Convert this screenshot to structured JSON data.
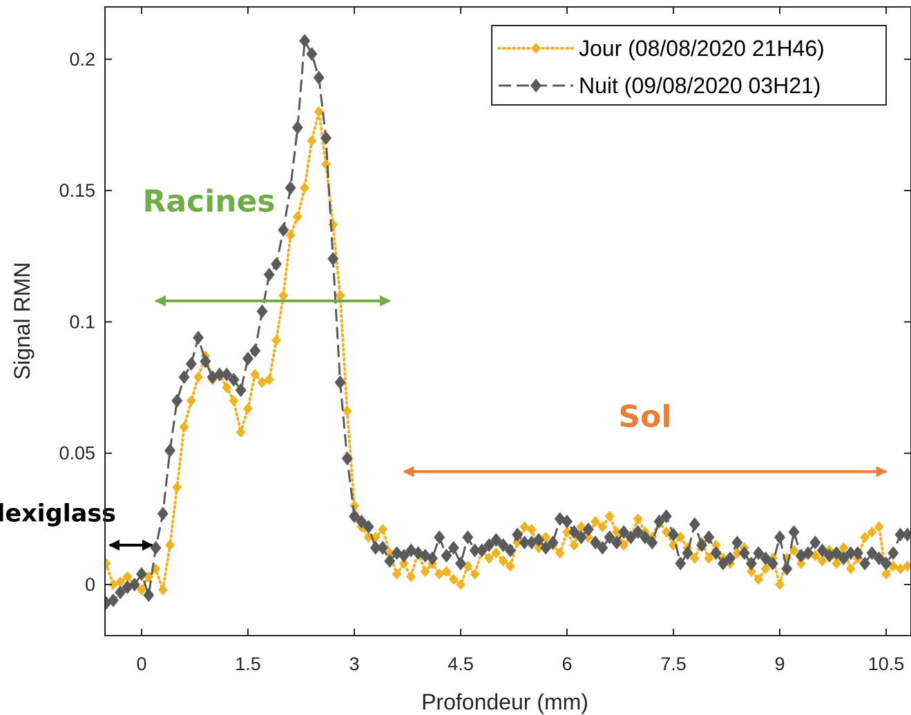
{
  "chart_data": {
    "type": "line",
    "title": "",
    "xlabel": "Profondeur (mm)",
    "ylabel": "Signal RMN",
    "xlim": [
      -0.5,
      10.9
    ],
    "ylim": [
      -0.02,
      0.22
    ],
    "xticks": [
      0,
      1.5,
      3,
      4.5,
      6,
      7.5,
      9,
      10.5
    ],
    "xtick_labels": [
      "0",
      "1.5",
      "3",
      "4.5",
      "6",
      "7.5",
      "9",
      "10.5"
    ],
    "yticks": [
      0,
      0.05,
      0.1,
      0.15,
      0.2
    ],
    "ytick_labels": [
      "0",
      "0.05",
      "0.1",
      "0.15",
      "0.2"
    ],
    "grid": false,
    "legend_position": "top-right",
    "series": [
      {
        "name": "Jour (08/08/2020 21H46)",
        "color": "#f0b323",
        "line_style": "dotted",
        "marker": "diamond",
        "x": [
          -0.5,
          -0.4,
          -0.3,
          -0.2,
          -0.1,
          0.0,
          0.1,
          0.2,
          0.3,
          0.4,
          0.5,
          0.6,
          0.7,
          0.8,
          0.9,
          1.0,
          1.1,
          1.2,
          1.3,
          1.4,
          1.5,
          1.6,
          1.7,
          1.8,
          1.9,
          2.0,
          2.1,
          2.2,
          2.3,
          2.4,
          2.5,
          2.6,
          2.7,
          2.8,
          2.9,
          3.0,
          3.1,
          3.2,
          3.3,
          3.4,
          3.5,
          3.6,
          3.7,
          3.8,
          3.9,
          4.0,
          4.1,
          4.2,
          4.3,
          4.4,
          4.5,
          4.6,
          4.7,
          4.8,
          4.9,
          5.0,
          5.1,
          5.2,
          5.3,
          5.4,
          5.5,
          5.6,
          5.7,
          5.8,
          5.9,
          6.0,
          6.1,
          6.2,
          6.3,
          6.4,
          6.5,
          6.6,
          6.7,
          6.8,
          6.9,
          7.0,
          7.1,
          7.2,
          7.3,
          7.4,
          7.5,
          7.6,
          7.7,
          7.8,
          7.9,
          8.0,
          8.1,
          8.2,
          8.3,
          8.4,
          8.5,
          8.6,
          8.7,
          8.8,
          8.9,
          9.0,
          9.1,
          9.2,
          9.3,
          9.4,
          9.5,
          9.6,
          9.7,
          9.8,
          9.9,
          10.0,
          10.1,
          10.2,
          10.3,
          10.4,
          10.5,
          10.6,
          10.7,
          10.8
        ],
        "y": [
          0.008,
          0.0,
          0.001,
          0.003,
          0.0,
          -0.002,
          0.003,
          0.006,
          -0.002,
          0.015,
          0.037,
          0.06,
          0.07,
          0.079,
          0.087,
          0.078,
          0.08,
          0.075,
          0.07,
          0.058,
          0.067,
          0.08,
          0.077,
          0.078,
          0.093,
          0.11,
          0.133,
          0.14,
          0.151,
          0.169,
          0.18,
          0.16,
          0.137,
          0.11,
          0.066,
          0.03,
          0.022,
          0.018,
          0.018,
          0.021,
          0.012,
          0.004,
          0.008,
          0.003,
          0.012,
          0.005,
          0.008,
          0.004,
          0.005,
          0.002,
          0.0,
          0.007,
          0.004,
          0.013,
          0.01,
          0.012,
          0.009,
          0.007,
          0.016,
          0.022,
          0.021,
          0.014,
          0.018,
          0.015,
          0.012,
          0.02,
          0.015,
          0.022,
          0.018,
          0.024,
          0.022,
          0.026,
          0.02,
          0.015,
          0.018,
          0.025,
          0.02,
          0.018,
          0.024,
          0.02,
          0.015,
          0.018,
          0.014,
          0.01,
          0.016,
          0.01,
          0.015,
          0.01,
          0.008,
          0.012,
          0.014,
          0.005,
          0.002,
          0.006,
          0.01,
          0.0,
          0.01,
          0.013,
          0.008,
          0.012,
          0.011,
          0.009,
          0.013,
          0.008,
          0.014,
          0.006,
          0.01,
          0.018,
          0.02,
          0.022,
          0.004,
          0.007,
          0.006,
          0.007
        ]
      },
      {
        "name": "Nuit (09/08/2020 03H21)",
        "color": "#5a5a5a",
        "line_style": "dashed",
        "marker": "diamond",
        "x": [
          -0.5,
          -0.4,
          -0.3,
          -0.2,
          -0.1,
          0.0,
          0.1,
          0.2,
          0.3,
          0.4,
          0.5,
          0.6,
          0.7,
          0.8,
          0.9,
          1.0,
          1.1,
          1.2,
          1.3,
          1.4,
          1.5,
          1.6,
          1.7,
          1.8,
          1.9,
          2.0,
          2.1,
          2.2,
          2.3,
          2.4,
          2.5,
          2.6,
          2.7,
          2.8,
          2.9,
          3.0,
          3.1,
          3.2,
          3.3,
          3.4,
          3.5,
          3.6,
          3.7,
          3.8,
          3.9,
          4.0,
          4.1,
          4.2,
          4.3,
          4.4,
          4.5,
          4.6,
          4.7,
          4.8,
          4.9,
          5.0,
          5.1,
          5.2,
          5.3,
          5.4,
          5.5,
          5.6,
          5.7,
          5.8,
          5.9,
          6.0,
          6.1,
          6.2,
          6.3,
          6.4,
          6.5,
          6.6,
          6.7,
          6.8,
          6.9,
          7.0,
          7.1,
          7.2,
          7.3,
          7.4,
          7.5,
          7.6,
          7.7,
          7.8,
          7.9,
          8.0,
          8.1,
          8.2,
          8.3,
          8.4,
          8.5,
          8.6,
          8.7,
          8.8,
          8.9,
          9.0,
          9.1,
          9.2,
          9.3,
          9.4,
          9.5,
          9.6,
          9.7,
          9.8,
          9.9,
          10.0,
          10.1,
          10.2,
          10.3,
          10.4,
          10.5,
          10.6,
          10.7,
          10.8
        ],
        "y": [
          -0.007,
          -0.006,
          -0.003,
          -0.001,
          0.0,
          0.004,
          -0.004,
          0.014,
          0.027,
          0.051,
          0.07,
          0.079,
          0.084,
          0.094,
          0.085,
          0.079,
          0.08,
          0.08,
          0.078,
          0.074,
          0.086,
          0.089,
          0.104,
          0.118,
          0.122,
          0.135,
          0.151,
          0.174,
          0.207,
          0.202,
          0.193,
          0.17,
          0.124,
          0.077,
          0.048,
          0.026,
          0.024,
          0.022,
          0.014,
          0.014,
          0.009,
          0.012,
          0.011,
          0.013,
          0.012,
          0.011,
          0.01,
          0.018,
          0.011,
          0.014,
          0.008,
          0.018,
          0.013,
          0.013,
          0.015,
          0.017,
          0.015,
          0.013,
          0.019,
          0.016,
          0.016,
          0.017,
          0.014,
          0.016,
          0.025,
          0.024,
          0.02,
          0.018,
          0.021,
          0.016,
          0.014,
          0.018,
          0.016,
          0.02,
          0.018,
          0.02,
          0.018,
          0.016,
          0.024,
          0.026,
          0.019,
          0.008,
          0.012,
          0.023,
          0.015,
          0.018,
          0.012,
          0.008,
          0.01,
          0.016,
          0.012,
          0.008,
          0.012,
          0.01,
          0.008,
          0.018,
          0.006,
          0.02,
          0.011,
          0.012,
          0.016,
          0.013,
          0.011,
          0.012,
          0.01,
          0.012,
          0.012,
          0.008,
          0.012,
          0.01,
          0.008,
          0.012,
          0.019,
          0.019
        ]
      }
    ],
    "annotations": [
      {
        "text": "Racines",
        "color": "#70ad47",
        "arrow_x_range": [
          0.2,
          3.5
        ],
        "arrow_y": 0.108,
        "label_x": 0.95,
        "label_y": 0.142
      },
      {
        "text": "Sol",
        "color": "#ed7d31",
        "arrow_x_range": [
          3.7,
          10.5
        ],
        "arrow_y": 0.043,
        "label_x": 7.1,
        "label_y": 0.06
      },
      {
        "text": "Plexiglass",
        "color": "#000000",
        "arrow_x_range": [
          -0.45,
          0.15
        ],
        "arrow_y": 0.015,
        "label_x": -0.45,
        "label_y": 0.024
      }
    ]
  }
}
